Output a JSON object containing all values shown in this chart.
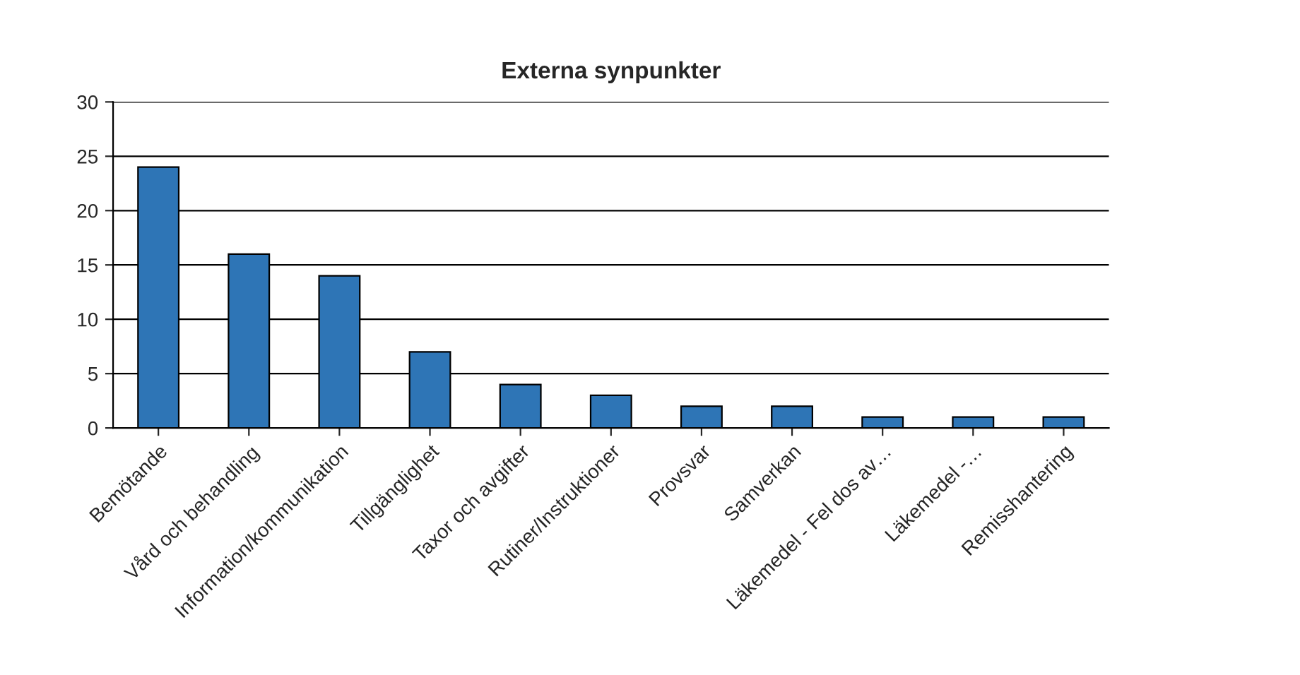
{
  "chart_data": {
    "type": "bar",
    "title": "Externa synpunkter",
    "categories": [
      "Bemötande",
      "Vård och behandling",
      "Information/kommunikation",
      "Tillgänglighet",
      "Taxor och avgifter",
      "Rutiner/Instruktioner",
      "Provsvar",
      "Samverkan",
      "Läkemedel - Fel dos av…",
      "Läkemedel -…",
      "Remisshantering"
    ],
    "values": [
      24,
      16,
      14,
      7,
      4,
      3,
      2,
      2,
      1,
      1,
      1
    ],
    "color": "#2e75b6",
    "ylim": [
      0,
      30
    ],
    "yticks": [
      0,
      5,
      10,
      15,
      20,
      25,
      30
    ],
    "grid": "y"
  }
}
